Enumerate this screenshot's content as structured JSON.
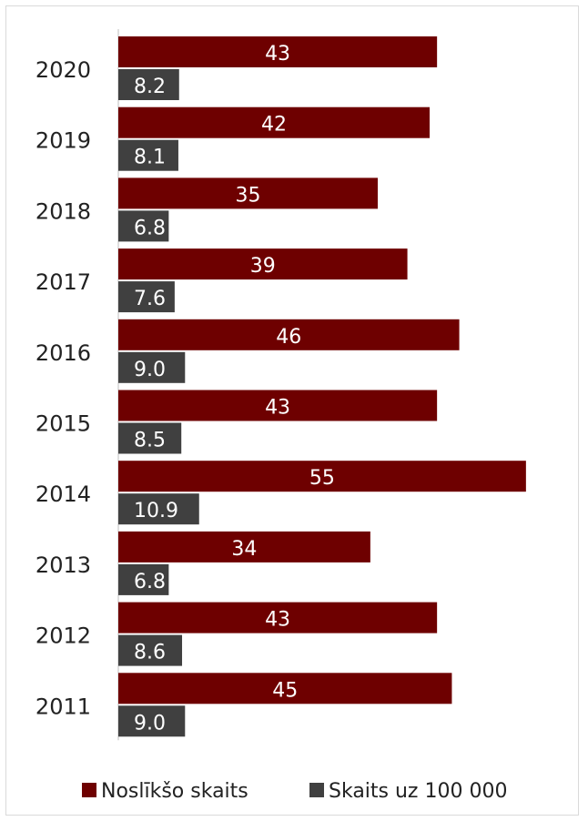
{
  "chart_data": {
    "type": "bar",
    "orientation": "horizontal",
    "categories": [
      "2020",
      "2019",
      "2018",
      "2017",
      "2016",
      "2015",
      "2014",
      "2013",
      "2012",
      "2011"
    ],
    "series": [
      {
        "name": "Noslīkšo skaits",
        "color": "#6e0000",
        "values": [
          43,
          42,
          35,
          39,
          46,
          43,
          55,
          34,
          43,
          45
        ],
        "labels": [
          "43",
          "42",
          "35",
          "39",
          "46",
          "43",
          "55",
          "34",
          "43",
          "45"
        ]
      },
      {
        "name": "Skaits uz 100 000",
        "color": "#404040",
        "values": [
          8.2,
          8.1,
          6.8,
          7.6,
          9.0,
          8.5,
          10.9,
          6.8,
          8.6,
          9.0
        ],
        "labels": [
          "8.2",
          "8.1",
          "6.8",
          "7.6",
          "9.0",
          "8.5",
          "10.9",
          "6.8",
          "8.6",
          "9.0"
        ]
      }
    ],
    "xlim": [
      0,
      56
    ],
    "grid": false,
    "legend": "bottom"
  }
}
